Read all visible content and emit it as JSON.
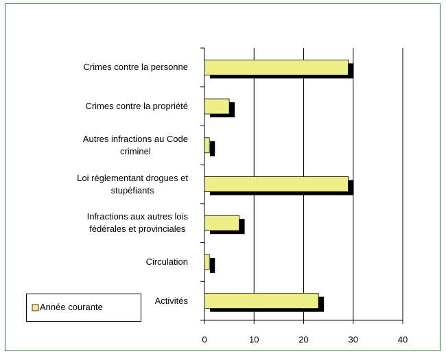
{
  "chart_data": {
    "type": "bar",
    "orientation": "horizontal",
    "categories": [
      "Crimes contre la personne",
      "Crimes contre la propriété",
      "Autres infractions au Code\ncriminel",
      "Loi réglementant drogues et\nstupéfiants",
      "Infractions aux autres lois\nfédérales et provinciales",
      "Circulation",
      "Activités"
    ],
    "series": [
      {
        "name": "Année courante",
        "color": "#eeee88",
        "values": [
          29,
          5,
          1,
          29,
          7,
          1,
          23
        ]
      }
    ],
    "xlim": [
      0,
      40
    ],
    "xticks": [
      0,
      10,
      20,
      30,
      40
    ],
    "grid": true,
    "legend": "bottom-left"
  }
}
